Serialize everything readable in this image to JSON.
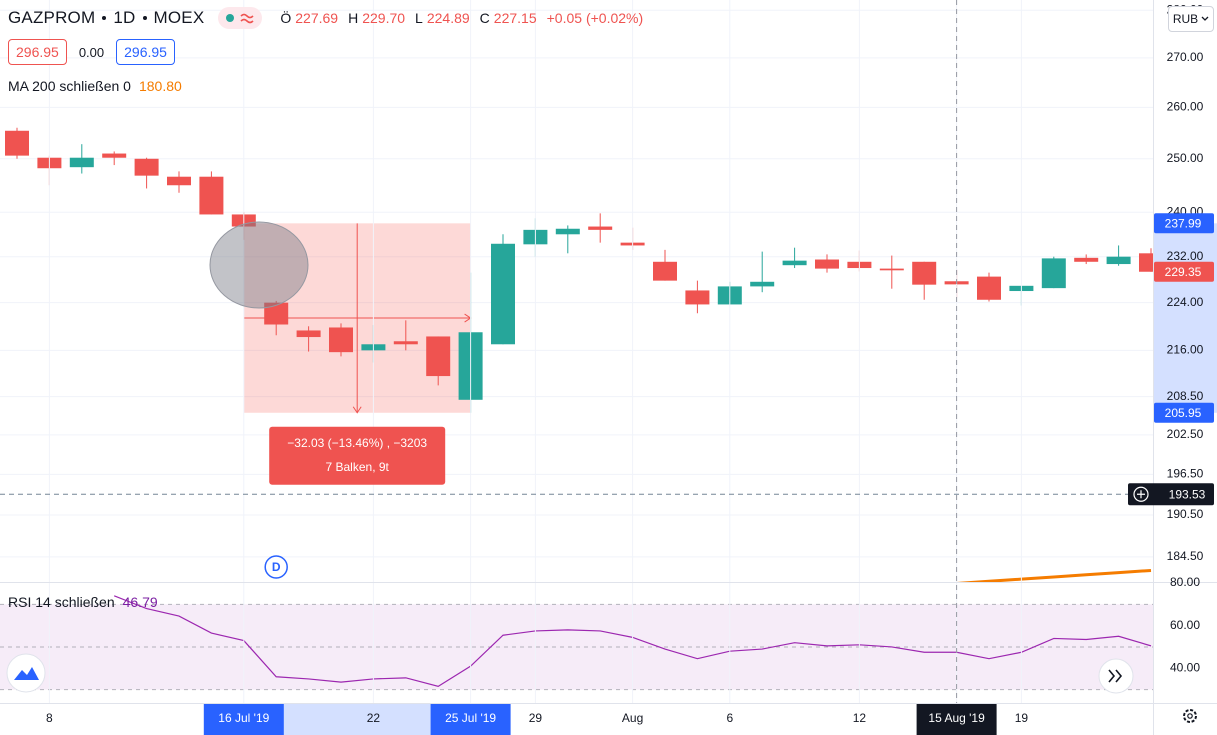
{
  "header": {
    "symbol": "GAZPROM",
    "interval": "1D",
    "exchange": "MOEX",
    "ohlc": [
      {
        "key": "Ö",
        "value": "227.69"
      },
      {
        "key": "H",
        "value": "229.70"
      },
      {
        "key": "L",
        "value": "224.89"
      },
      {
        "key": "C",
        "value": "227.15"
      }
    ],
    "change": "+0.05 (+0.02%)",
    "sell": "296.95",
    "spread": "0.00",
    "buy": "296.95",
    "currency": "RUB"
  },
  "chart_data": [
    {
      "type": "candlestick",
      "x": [
        null,
        "8",
        null,
        null,
        null,
        null,
        null,
        "16 Jul '19",
        null,
        null,
        null,
        "22",
        null,
        null,
        "25 Jul '19",
        null,
        "29",
        null,
        null,
        "Aug",
        null,
        null,
        "6",
        null,
        null,
        null,
        "12",
        null,
        null,
        "15 Aug '19",
        null,
        "19",
        null,
        null,
        null,
        null
      ],
      "series": [
        {
          "name": "GAZPROM",
          "up_color": "#26a69a",
          "down_color": "#ef5350",
          "open": [
            255.4,
            250.2,
            248.4,
            251,
            250,
            246.6,
            246.6,
            239.6,
            224,
            219.3,
            219.8,
            216,
            217.5,
            218.3,
            208,
            217,
            234.2,
            236,
            237.4,
            234.5,
            231.1,
            226.1,
            223.7,
            226.8,
            230.5,
            231.5,
            231.1,
            229.9,
            231.1,
            227.69,
            228.5,
            226,
            226.5,
            231.8,
            230.7,
            232.6
          ],
          "high": [
            256,
            250.6,
            252.8,
            251.4,
            250.2,
            247.6,
            247.6,
            240,
            224.3,
            220,
            220.5,
            220.2,
            221,
            218.3,
            229.2,
            236,
            238.9,
            237.6,
            239.8,
            237.2,
            233.2,
            227.8,
            227.6,
            232.9,
            233.6,
            232.4,
            233.1,
            232.2,
            231.1,
            229.7,
            229.2,
            226.9,
            232,
            232.4,
            234,
            233.5
          ],
          "low": [
            250,
            245,
            247.2,
            248.8,
            244.4,
            243.6,
            239.6,
            235,
            218.5,
            215.8,
            215,
            214,
            216,
            210.3,
            205.95,
            217,
            232,
            232.6,
            234.5,
            233.2,
            227.8,
            222.2,
            223.7,
            225.8,
            230,
            229.2,
            229.4,
            226.4,
            224.5,
            224.89,
            224.2,
            223.5,
            226.5,
            230.7,
            230.4,
            229.35
          ],
          "close": [
            250.6,
            248.2,
            250.2,
            250.2,
            246.8,
            245,
            239.6,
            237.4,
            220.3,
            218.2,
            215.7,
            217,
            217,
            211.8,
            219,
            234.3,
            236.8,
            237,
            236.8,
            234,
            227.8,
            223.7,
            226.8,
            227.6,
            231.3,
            229.9,
            230,
            229.6,
            227.1,
            227.15,
            224.5,
            226.9,
            231.7,
            231.1,
            232,
            229.35
          ]
        }
      ],
      "overlays": [
        {
          "name": "MA 200 schließen 0",
          "legend_value": "180.80",
          "color": "#f57c00",
          "values": [
            null,
            null,
            null,
            null,
            null,
            null,
            null,
            null,
            null,
            null,
            null,
            null,
            null,
            null,
            null,
            null,
            null,
            null,
            null,
            null,
            null,
            null,
            null,
            null,
            null,
            null,
            null,
            null,
            null,
            180.8,
            181.1,
            181.4,
            181.7,
            182.0,
            182.3,
            182.6
          ]
        }
      ],
      "ylim": [
        181,
        282.2
      ],
      "log_scale": true,
      "grid": true,
      "yticks": [
        {
          "value": 280,
          "label": "280.00"
        },
        {
          "value": 270,
          "label": "270.00"
        },
        {
          "value": 260,
          "label": "260.00"
        },
        {
          "value": 250,
          "label": "250.00"
        },
        {
          "value": 240,
          "label": "240.00"
        },
        {
          "value": 232,
          "label": "232.00"
        },
        {
          "value": 224,
          "label": "224.00"
        },
        {
          "value": 216,
          "label": "216.00"
        },
        {
          "value": 208.5,
          "label": "208.50"
        },
        {
          "value": 202.5,
          "label": "202.50"
        },
        {
          "value": 196.5,
          "label": "196.50"
        },
        {
          "value": 190.5,
          "label": "190.50"
        },
        {
          "value": 184.5,
          "label": "184.50"
        }
      ],
      "price_labels": [
        {
          "value": 237.99,
          "color": "#2962ff"
        },
        {
          "value": 229.35,
          "color": "#ef5350"
        },
        {
          "value": 205.95,
          "color": "#2962ff"
        }
      ],
      "crosshair": {
        "x_index": 29,
        "y": 193.53
      },
      "measure": {
        "start": 7,
        "end": 14,
        "from": 237.98,
        "to": 205.95,
        "text": "−32.03 (−13.46%) , −3203",
        "subtext": "7 Balken, 9t"
      },
      "marker": {
        "index": 8,
        "text": "D"
      }
    },
    {
      "type": "line",
      "series": [
        {
          "name": "RSI 14 schließen",
          "legend_value": "46.79",
          "color": "#9c27b0",
          "values": [
            null,
            null,
            null,
            74,
            68,
            64.5,
            56.5,
            53,
            36,
            35,
            33.5,
            35,
            35.5,
            31.5,
            41,
            55.5,
            57.5,
            58,
            57.5,
            54.5,
            49,
            44.5,
            48,
            49,
            52,
            50.5,
            51,
            50,
            47.5,
            47.5,
            44.5,
            47.5,
            54,
            53.5,
            55,
            50.5
          ]
        }
      ],
      "ylim": [
        23.7,
        80
      ],
      "yticks": [
        {
          "value": 40,
          "label": "40.00"
        },
        {
          "value": 60,
          "label": "60.00"
        },
        {
          "value": 80,
          "label": "80.00"
        }
      ],
      "levels": [
        70,
        50,
        30
      ]
    }
  ]
}
